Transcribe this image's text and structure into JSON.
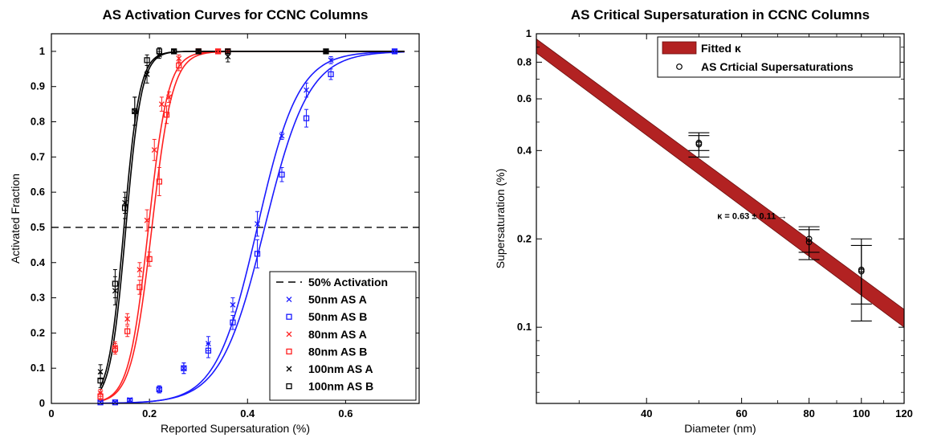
{
  "chart_data": [
    {
      "type": "scatter",
      "title": "AS Activation Curves for CCNC Columns",
      "xlabel": "Reported Supersaturation (%)",
      "ylabel": "Activated Fraction",
      "xlim": [
        0,
        0.75
      ],
      "ylim": [
        0,
        1.05
      ],
      "xticks": [
        0,
        0.2,
        0.4,
        0.6
      ],
      "xtick_labels": [
        "0",
        "0.2",
        "0.4",
        "0.6"
      ],
      "yticks": [
        0,
        0.1,
        0.2,
        0.3,
        0.4,
        0.5,
        0.6,
        0.7,
        0.8,
        0.9,
        1
      ],
      "ytick_labels": [
        "0",
        "0.1",
        "0.2",
        "0.3",
        "0.4",
        "0.5",
        "0.6",
        "0.7",
        "0.8",
        "0.9",
        "1"
      ],
      "grid": false,
      "legend_position": "bottom-right",
      "reference_line": {
        "y": 0.5,
        "name": "50% Activation",
        "style": "dashed",
        "color": "#000000"
      },
      "series": [
        {
          "name": "50nm AS A",
          "marker": "x",
          "color": "#1a1aff",
          "fit_center": 0.42,
          "fit_width": 0.042,
          "x": [
            0.1,
            0.13,
            0.16,
            0.22,
            0.27,
            0.32,
            0.37,
            0.42,
            0.47,
            0.52,
            0.57,
            0.7
          ],
          "y": [
            0.003,
            0.003,
            0.01,
            0.04,
            0.1,
            0.17,
            0.28,
            0.51,
            0.76,
            0.89,
            0.975,
            1.0
          ],
          "err": [
            0.003,
            0.003,
            0.005,
            0.01,
            0.015,
            0.02,
            0.02,
            0.035,
            0.01,
            0.02,
            0.01,
            0.005
          ]
        },
        {
          "name": "50nm AS B",
          "marker": "square",
          "color": "#1a1aff",
          "fit_center": 0.435,
          "fit_width": 0.045,
          "x": [
            0.1,
            0.13,
            0.16,
            0.22,
            0.27,
            0.32,
            0.37,
            0.42,
            0.47,
            0.52,
            0.57,
            0.7
          ],
          "y": [
            0.003,
            0.003,
            0.008,
            0.04,
            0.1,
            0.15,
            0.23,
            0.425,
            0.65,
            0.81,
            0.935,
            1.0
          ],
          "err": [
            0.003,
            0.003,
            0.005,
            0.01,
            0.015,
            0.02,
            0.02,
            0.04,
            0.02,
            0.025,
            0.015,
            0.005
          ]
        },
        {
          "name": "80nm AS A",
          "marker": "x",
          "color": "#ff2020",
          "fit_center": 0.198,
          "fit_width": 0.02,
          "x": [
            0.1,
            0.13,
            0.155,
            0.18,
            0.195,
            0.21,
            0.225,
            0.24,
            0.26,
            0.3,
            0.34,
            0.36
          ],
          "y": [
            0.03,
            0.16,
            0.24,
            0.38,
            0.52,
            0.72,
            0.85,
            0.87,
            0.98,
            1.0,
            1.0,
            1.0
          ],
          "err": [
            0.01,
            0.015,
            0.015,
            0.02,
            0.03,
            0.03,
            0.02,
            0.015,
            0.01,
            0.005,
            0.005,
            0.005
          ]
        },
        {
          "name": "80nm AS B",
          "marker": "square",
          "color": "#ff2020",
          "fit_center": 0.205,
          "fit_width": 0.021,
          "x": [
            0.1,
            0.13,
            0.155,
            0.18,
            0.2,
            0.22,
            0.235,
            0.26,
            0.3,
            0.34,
            0.36
          ],
          "y": [
            0.02,
            0.155,
            0.205,
            0.33,
            0.41,
            0.63,
            0.82,
            0.96,
            1.0,
            1.0,
            1.0
          ],
          "err": [
            0.01,
            0.015,
            0.015,
            0.02,
            0.02,
            0.04,
            0.025,
            0.015,
            0.005,
            0.005,
            0.005
          ]
        },
        {
          "name": "100nm AS A",
          "marker": "x",
          "color": "#000000",
          "fit_center": 0.148,
          "fit_width": 0.016,
          "x": [
            0.1,
            0.13,
            0.15,
            0.17,
            0.195,
            0.22,
            0.25,
            0.3,
            0.36,
            0.56
          ],
          "y": [
            0.09,
            0.32,
            0.57,
            0.83,
            0.935,
            0.99,
            1.0,
            1.0,
            0.985,
            1.0
          ],
          "err": [
            0.02,
            0.04,
            0.03,
            0.04,
            0.025,
            0.01,
            0.005,
            0.005,
            0.015,
            0.005
          ]
        },
        {
          "name": "100nm AS B",
          "marker": "square",
          "color": "#000000",
          "fit_center": 0.152,
          "fit_width": 0.016,
          "x": [
            0.1,
            0.13,
            0.15,
            0.17,
            0.195,
            0.22,
            0.25,
            0.3,
            0.36,
            0.56
          ],
          "y": [
            0.065,
            0.34,
            0.555,
            0.83,
            0.975,
            1.0,
            1.0,
            1.0,
            1.0,
            1.0
          ],
          "err": [
            0.02,
            0.04,
            0.03,
            0.04,
            0.015,
            0.01,
            0.005,
            0.005,
            0.005,
            0.005
          ]
        }
      ]
    },
    {
      "type": "scatter",
      "title": "AS Critical Supersaturation in CCNC Columns",
      "xlabel": "Diameter (nm)",
      "ylabel": "Supersaturation (%)",
      "xscale": "log",
      "yscale": "log",
      "xlim": [
        25,
        120
      ],
      "ylim": [
        0.055,
        1.0
      ],
      "xticks": [
        40,
        60,
        80,
        100,
        120
      ],
      "xtick_labels": [
        "40",
        "60",
        "80",
        "100",
        "120"
      ],
      "yticks": [
        0.1,
        0.2,
        0.4,
        0.6,
        0.8,
        1
      ],
      "ytick_labels": [
        "0.1",
        "0.2",
        "0.4",
        "0.6",
        "0.8",
        "1"
      ],
      "grid": false,
      "legend_position": "top-right",
      "band": {
        "name": "Fitted κ",
        "color": "#b22222",
        "x": [
          25,
          120
        ],
        "lower": [
          0.86,
          0.1
        ],
        "upper": [
          0.96,
          0.115
        ]
      },
      "series": [
        {
          "name": "AS Crticial Supersaturations",
          "marker": "circle",
          "color": "#000000",
          "x": [
            50,
            50,
            80,
            80,
            100,
            100
          ],
          "y": [
            0.42,
            0.425,
            0.195,
            0.2,
            0.155,
            0.157
          ],
          "err_low": [
            0.38,
            0.4,
            0.17,
            0.18,
            0.105,
            0.12
          ],
          "err_high": [
            0.46,
            0.45,
            0.22,
            0.215,
            0.2,
            0.19
          ]
        }
      ],
      "annotations": [
        {
          "text": "κ = 0.63 ± 0.11 →",
          "x": 40,
          "y": 0.24
        }
      ]
    }
  ]
}
